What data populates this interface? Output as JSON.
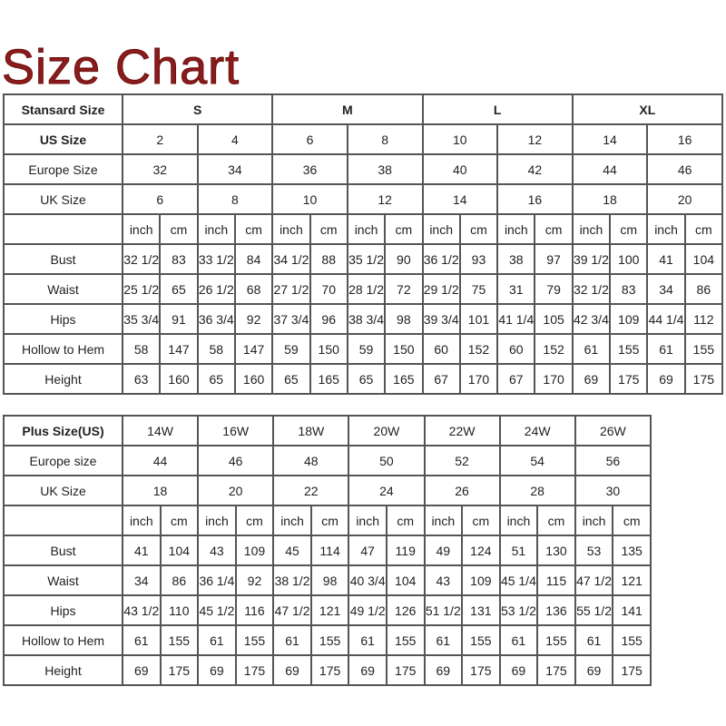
{
  "title": "Size Chart",
  "colors": {
    "title": "#8a1c1c",
    "grid": "#555555",
    "text": "#222222"
  },
  "standard": {
    "header_label": "Stansard Size",
    "groups": [
      "S",
      "M",
      "L",
      "XL"
    ],
    "size_rows": [
      {
        "label": "US Size",
        "values": [
          "2",
          "4",
          "6",
          "8",
          "10",
          "12",
          "14",
          "16"
        ]
      },
      {
        "label": "Europe Size",
        "values": [
          "32",
          "34",
          "36",
          "38",
          "40",
          "42",
          "44",
          "46"
        ]
      },
      {
        "label": "UK Size",
        "values": [
          "6",
          "8",
          "10",
          "12",
          "14",
          "16",
          "18",
          "20"
        ]
      }
    ],
    "units": [
      "inch",
      "cm",
      "inch",
      "cm",
      "inch",
      "cm",
      "inch",
      "cm",
      "inch",
      "cm",
      "inch",
      "cm",
      "inch",
      "cm",
      "inch",
      "cm"
    ],
    "measure_rows": [
      {
        "label": "Bust",
        "values": [
          "32 1/2",
          "83",
          "33 1/2",
          "84",
          "34 1/2",
          "88",
          "35 1/2",
          "90",
          "36 1/2",
          "93",
          "38",
          "97",
          "39 1/2",
          "100",
          "41",
          "104"
        ]
      },
      {
        "label": "Waist",
        "values": [
          "25 1/2",
          "65",
          "26 1/2",
          "68",
          "27 1/2",
          "70",
          "28 1/2",
          "72",
          "29 1/2",
          "75",
          "31",
          "79",
          "32 1/2",
          "83",
          "34",
          "86"
        ]
      },
      {
        "label": "Hips",
        "values": [
          "35 3/4",
          "91",
          "36 3/4",
          "92",
          "37 3/4",
          "96",
          "38 3/4",
          "98",
          "39 3/4",
          "101",
          "41 1/4",
          "105",
          "42 3/4",
          "109",
          "44 1/4",
          "112"
        ]
      },
      {
        "label": "Hollow to Hem",
        "values": [
          "58",
          "147",
          "58",
          "147",
          "59",
          "150",
          "59",
          "150",
          "60",
          "152",
          "60",
          "152",
          "61",
          "155",
          "61",
          "155"
        ]
      },
      {
        "label": "Height",
        "values": [
          "63",
          "160",
          "65",
          "160",
          "65",
          "165",
          "65",
          "165",
          "67",
          "170",
          "67",
          "170",
          "69",
          "175",
          "69",
          "175"
        ]
      }
    ]
  },
  "plus": {
    "header_label": "Plus Size(US)",
    "groups": [
      "14W",
      "16W",
      "18W",
      "20W",
      "22W",
      "24W",
      "26W"
    ],
    "size_rows": [
      {
        "label": "Europe size",
        "values": [
          "44",
          "46",
          "48",
          "50",
          "52",
          "54",
          "56"
        ]
      },
      {
        "label": "UK Size",
        "values": [
          "18",
          "20",
          "22",
          "24",
          "26",
          "28",
          "30"
        ]
      }
    ],
    "units": [
      "inch",
      "cm",
      "inch",
      "cm",
      "inch",
      "cm",
      "inch",
      "cm",
      "inch",
      "cm",
      "inch",
      "cm",
      "inch",
      "cm"
    ],
    "measure_rows": [
      {
        "label": "Bust",
        "values": [
          "41",
          "104",
          "43",
          "109",
          "45",
          "114",
          "47",
          "119",
          "49",
          "124",
          "51",
          "130",
          "53",
          "135"
        ]
      },
      {
        "label": "Waist",
        "values": [
          "34",
          "86",
          "36 1/4",
          "92",
          "38 1/2",
          "98",
          "40 3/4",
          "104",
          "43",
          "109",
          "45 1/4",
          "115",
          "47 1/2",
          "121"
        ]
      },
      {
        "label": "Hips",
        "values": [
          "43 1/2",
          "110",
          "45 1/2",
          "116",
          "47 1/2",
          "121",
          "49 1/2",
          "126",
          "51 1/2",
          "131",
          "53 1/2",
          "136",
          "55 1/2",
          "141"
        ]
      },
      {
        "label": "Hollow to Hem",
        "values": [
          "61",
          "155",
          "61",
          "155",
          "61",
          "155",
          "61",
          "155",
          "61",
          "155",
          "61",
          "155",
          "61",
          "155"
        ]
      },
      {
        "label": "Height",
        "values": [
          "69",
          "175",
          "69",
          "175",
          "69",
          "175",
          "69",
          "175",
          "69",
          "175",
          "69",
          "175",
          "69",
          "175"
        ]
      }
    ]
  }
}
